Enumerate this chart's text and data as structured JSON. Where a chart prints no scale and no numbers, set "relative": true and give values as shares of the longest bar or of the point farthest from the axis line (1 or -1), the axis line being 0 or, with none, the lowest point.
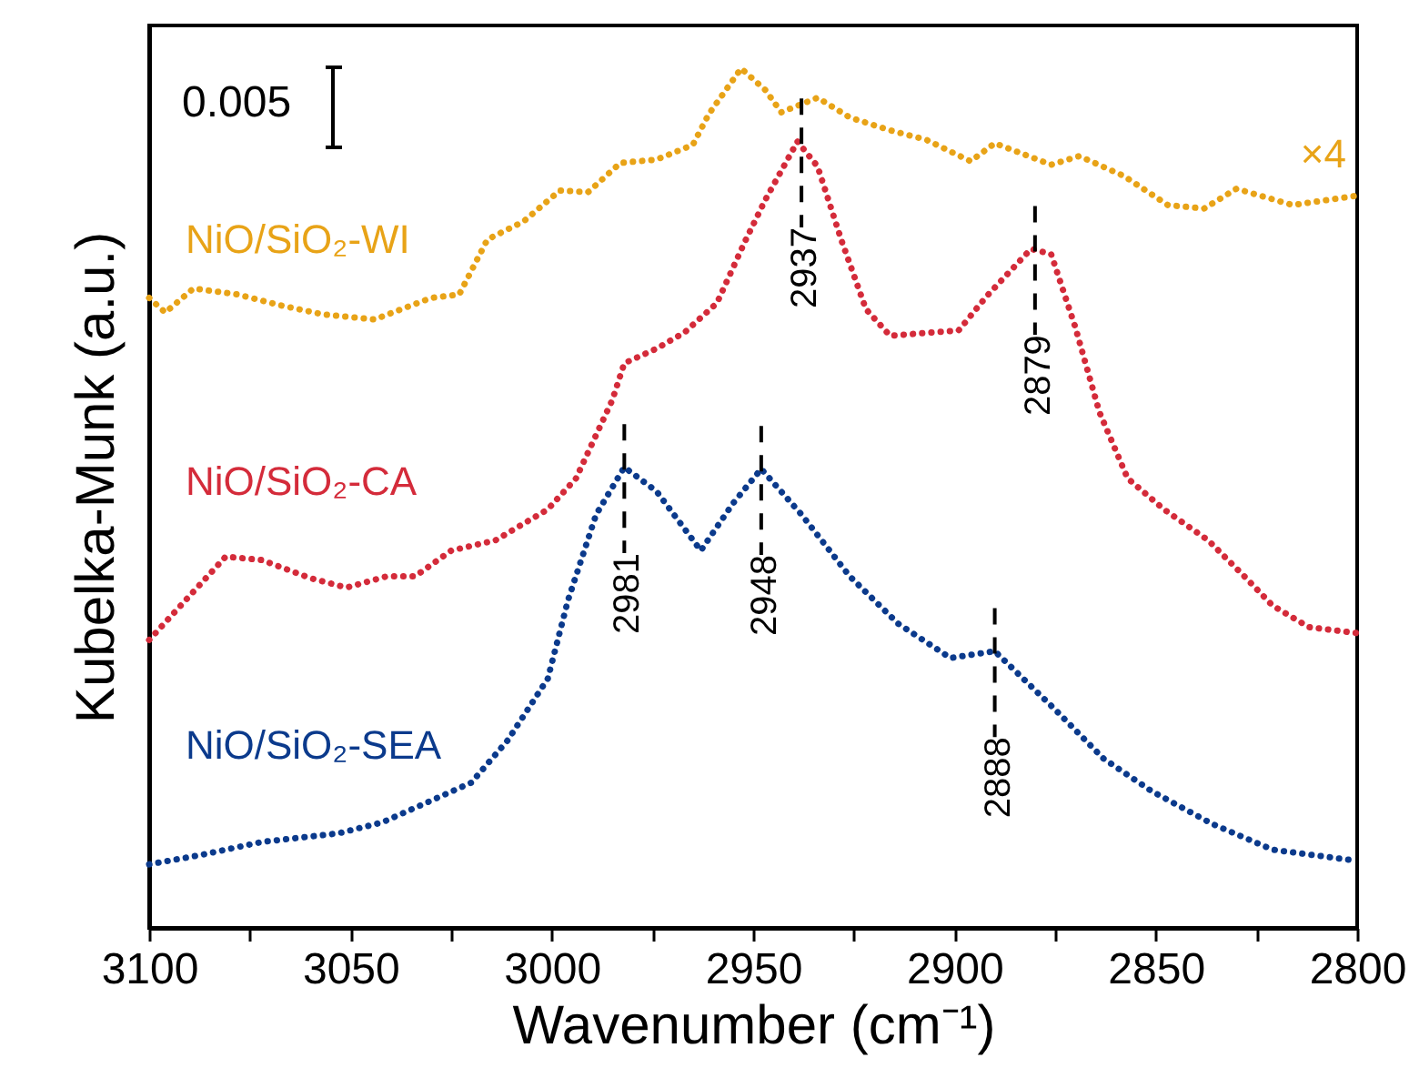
{
  "chart_data": {
    "type": "line",
    "relative": true,
    "xlabel": "Wavenumber (cm⁻¹)",
    "ylabel": "Kubelka-Munk (a.u.)",
    "xlim": [
      3100,
      2800
    ],
    "xticks": [
      3100,
      {
        "value": 3075,
        "label": null
      },
      3050,
      {
        "value": 3025,
        "label": null
      },
      3000,
      {
        "value": 2975,
        "label": null
      },
      2950,
      {
        "value": 2925,
        "label": null
      },
      2900,
      {
        "value": 2875,
        "label": null
      },
      2850,
      {
        "value": 2825,
        "label": null
      },
      2800
    ],
    "grid": false,
    "line_style": "dotted",
    "marker": "none",
    "series": [
      {
        "name": "NiO/SiO₂-WI",
        "color": "#e8a317",
        "x": [
          3100,
          3096,
          3089,
          3078,
          3068,
          3057,
          3044,
          3030,
          3023,
          3016,
          3007,
          2998,
          2991,
          2983,
          2974,
          2965,
          2961,
          2953,
          2947,
          2943,
          2934,
          2926,
          2916,
          2907,
          2896,
          2890,
          2876,
          2869,
          2858,
          2847,
          2838,
          2830,
          2816,
          2800
        ],
        "values": [
          0.733,
          0.716,
          0.744,
          0.737,
          0.725,
          0.714,
          0.708,
          0.733,
          0.737,
          0.801,
          0.822,
          0.858,
          0.856,
          0.89,
          0.894,
          0.911,
          0.947,
          1.0,
          0.975,
          0.949,
          0.966,
          0.943,
          0.928,
          0.917,
          0.892,
          0.913,
          0.888,
          0.898,
          0.875,
          0.841,
          0.837,
          0.86,
          0.841,
          0.852
        ]
      },
      {
        "name": "NiO/SiO₂-CA",
        "color": "#d42b3a",
        "x": [
          3100,
          3091,
          3081,
          3072,
          3060,
          3051,
          3041,
          3034,
          3025,
          3014,
          3001,
          2994,
          2985,
          2982,
          2974,
          2967,
          2959,
          2952,
          2947,
          2939,
          2934,
          2928,
          2922,
          2916,
          2905,
          2899,
          2892,
          2881,
          2876,
          2870,
          2864,
          2857,
          2848,
          2837,
          2828,
          2821,
          2812,
          2800
        ],
        "values": [
          0.335,
          0.381,
          0.432,
          0.428,
          0.407,
          0.396,
          0.409,
          0.409,
          0.439,
          0.451,
          0.487,
          0.523,
          0.614,
          0.657,
          0.674,
          0.693,
          0.727,
          0.799,
          0.847,
          0.915,
          0.886,
          0.799,
          0.72,
          0.689,
          0.693,
          0.695,
          0.735,
          0.79,
          0.784,
          0.699,
          0.6,
          0.523,
          0.487,
          0.451,
          0.409,
          0.375,
          0.35,
          0.343
        ]
      },
      {
        "name": "NiO/SiO₂-SEA",
        "color": "#0b3a8c",
        "x": [
          3100,
          3087,
          3072,
          3053,
          3042,
          3030,
          3020,
          3011,
          3001,
          2996,
          2989,
          2982,
          2974,
          2963,
          2955,
          2948,
          2938,
          2926,
          2914,
          2901,
          2890,
          2875,
          2863,
          2851,
          2836,
          2821,
          2800
        ],
        "values": [
          0.074,
          0.085,
          0.1,
          0.11,
          0.123,
          0.148,
          0.169,
          0.218,
          0.29,
          0.381,
          0.481,
          0.536,
          0.508,
          0.439,
          0.494,
          0.534,
          0.481,
          0.409,
          0.354,
          0.314,
          0.322,
          0.254,
          0.197,
          0.159,
          0.121,
          0.091,
          0.078
        ]
      }
    ],
    "annotations": [
      "0.005",
      "×4",
      {
        "text": "2937",
        "x": 2938,
        "y": 0.915
      },
      {
        "text": "2879",
        "x": 2880,
        "y": 0.79
      },
      {
        "text": "2981",
        "x": 2982,
        "y": 0.536
      },
      {
        "text": "2948",
        "x": 2948,
        "y": 0.534
      },
      {
        "text": "2888",
        "x": 2890,
        "y": 0.322
      }
    ]
  }
}
